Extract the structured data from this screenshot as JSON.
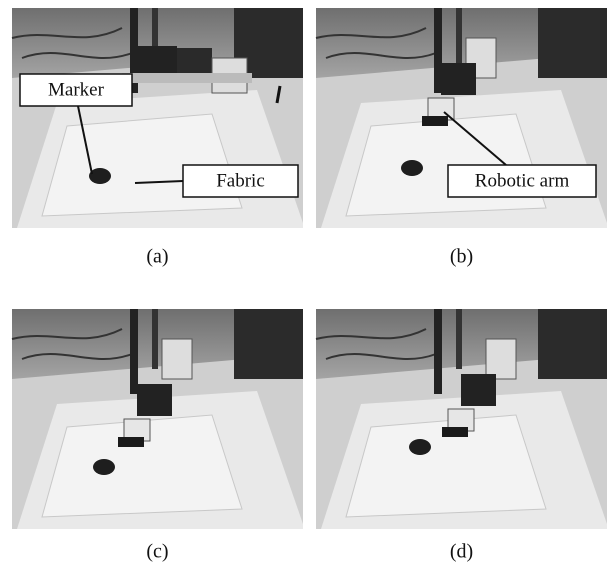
{
  "panels": [
    {
      "caption": "(a)",
      "callouts": [
        "Marker",
        "Fabric"
      ]
    },
    {
      "caption": "(b)",
      "callouts": [
        "Robotic arm"
      ]
    },
    {
      "caption": "(c)",
      "callouts": []
    },
    {
      "caption": "(d)",
      "callouts": []
    }
  ]
}
